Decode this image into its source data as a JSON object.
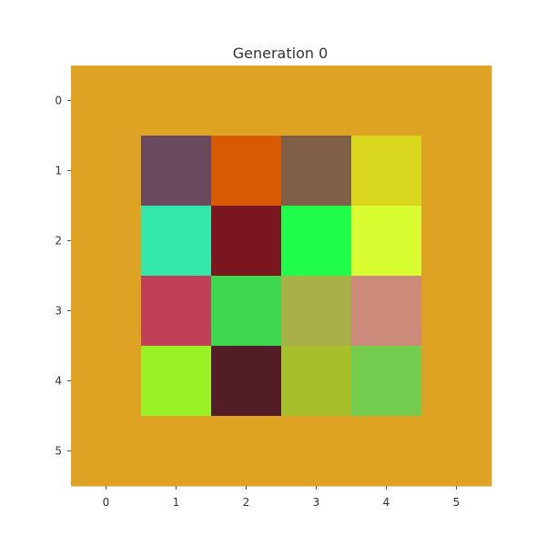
{
  "chart_data": {
    "type": "heatmap",
    "title": "Generation 0",
    "xlabel": "",
    "ylabel": "",
    "x_ticks": [
      "0",
      "1",
      "2",
      "3",
      "4",
      "5"
    ],
    "y_ticks": [
      "0",
      "1",
      "2",
      "3",
      "4",
      "5"
    ],
    "grid": false,
    "background_color": "#DEA322",
    "cells": [
      [
        "#DEA322",
        "#DEA322",
        "#DEA322",
        "#DEA322",
        "#DEA322",
        "#DEA322"
      ],
      [
        "#DEA322",
        "#6A485E",
        "#D85B04",
        "#7F5F45",
        "#D8D71E",
        "#DEA322"
      ],
      [
        "#DEA322",
        "#33E6AA",
        "#79161F",
        "#1EFE4A",
        "#D8FE32",
        "#DEA322"
      ],
      [
        "#DEA322",
        "#C04058",
        "#3ED84E",
        "#AAB048",
        "#CC8A7A",
        "#DEA322"
      ],
      [
        "#DEA322",
        "#99F224",
        "#521D26",
        "#A6C02C",
        "#74CC4E",
        "#DEA322"
      ],
      [
        "#DEA322",
        "#DEA322",
        "#DEA322",
        "#DEA322",
        "#DEA322",
        "#DEA322"
      ]
    ]
  }
}
